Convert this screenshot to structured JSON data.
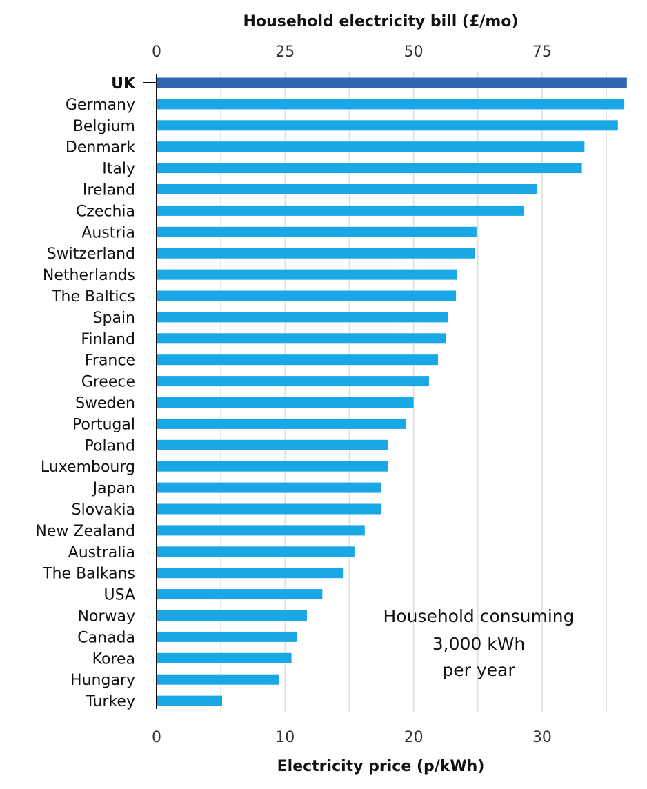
{
  "chart_data": {
    "type": "bar",
    "orientation": "horizontal",
    "highlight": "UK",
    "categories": [
      "UK",
      "Germany",
      "Belgium",
      "Denmark",
      "Italy",
      "Ireland",
      "Czechia",
      "Austria",
      "Switzerland",
      "Netherlands",
      "The Baltics",
      "Spain",
      "Finland",
      "France",
      "Greece",
      "Sweden",
      "Portugal",
      "Poland",
      "Luxembourg",
      "Japan",
      "Slovakia",
      "New Zealand",
      "Australia",
      "The Balkans",
      "USA",
      "Norway",
      "Canada",
      "Korea",
      "Hungary",
      "Turkey"
    ],
    "values": [
      36.6,
      36.4,
      35.9,
      33.3,
      33.1,
      29.6,
      28.6,
      24.9,
      24.8,
      23.4,
      23.3,
      22.7,
      22.5,
      21.9,
      21.2,
      20.0,
      19.4,
      18.0,
      18.0,
      17.5,
      17.5,
      16.2,
      15.4,
      14.5,
      12.9,
      11.7,
      10.9,
      10.5,
      9.5,
      5.1
    ],
    "xlabel": "Electricity price (p/kWh)",
    "xlim": [
      0,
      36.6
    ],
    "x_ticks": [
      "0",
      "10",
      "20",
      "30"
    ],
    "secondary_axis": {
      "label": "Household electricity bill (£/mo)",
      "ticks": [
        "0",
        "25",
        "50",
        "75"
      ],
      "tick_values": [
        0,
        25,
        50,
        75
      ],
      "conversion_gbp_per_month_per_pence": 2.5
    },
    "grid": true,
    "annotation_lines": [
      "Household consuming",
      "3,000 kWh",
      "per year"
    ],
    "colors": {
      "bar": "#1aa7e6",
      "highlight": "#2e66b3",
      "grid": "#dddddd",
      "axis": "#111111"
    }
  }
}
